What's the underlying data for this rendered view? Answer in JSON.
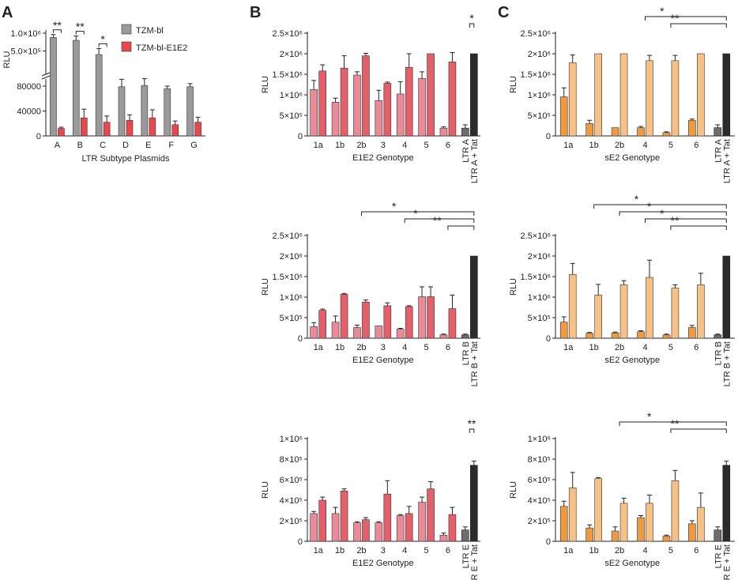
{
  "panel_labels": [
    "A",
    "B",
    "C"
  ],
  "chart_data": [
    {
      "id": "A",
      "type": "bar",
      "title": "",
      "xlabel": "LTR Subtype Plasmids",
      "ylabel": "RLU",
      "categories": [
        "A",
        "B",
        "C",
        "D",
        "E",
        "F",
        "G"
      ],
      "axis_break": true,
      "ylim_lower": [
        0,
        80000
      ],
      "yticks_lower": [
        0,
        40000,
        80000
      ],
      "ytick_labels_lower": [
        "0",
        "40000",
        "80000"
      ],
      "ylim_upper": [
        0,
        1000000
      ],
      "yticks_upper": [
        500000,
        1000000
      ],
      "ytick_labels_upper": [
        "5.0×10⁵",
        "1.0×10⁶"
      ],
      "legend": [
        "TZM-bl",
        "TZM-bl-E1E2"
      ],
      "series": [
        {
          "name": "TZM-bl",
          "color": "#9a9a9a",
          "seg": [
            "upper",
            "upper",
            "upper",
            "lower",
            "lower",
            "lower",
            "lower"
          ],
          "values": [
            880000,
            800000,
            400000,
            79000,
            81000,
            76000,
            79000
          ],
          "errors": [
            80000,
            120000,
            170000,
            12000,
            11000,
            4000,
            5000
          ]
        },
        {
          "name": "TZM-bl-E1E2",
          "color": "#e8474d",
          "seg": [
            "lower",
            "lower",
            "lower",
            "lower",
            "lower",
            "lower",
            "lower"
          ],
          "values": [
            12000,
            29000,
            22000,
            25000,
            29000,
            18000,
            22000
          ],
          "errors": [
            2000,
            14000,
            10000,
            9000,
            13000,
            6000,
            8000
          ]
        }
      ],
      "significance": [
        {
          "label": "**",
          "from": 0,
          "to": 0
        },
        {
          "label": "**",
          "from": 1,
          "to": 1
        },
        {
          "label": "*",
          "from": 2,
          "to": 2
        }
      ]
    },
    {
      "id": "B1",
      "type": "bar",
      "xlabel": "E1E2 Genotype",
      "ylabel": "RLU",
      "ylim": [
        0,
        2500000
      ],
      "yticks": [
        0,
        500000,
        1000000,
        1500000,
        2000000,
        2500000
      ],
      "ytick_labels": [
        "0",
        "5×10⁵",
        "1×10⁶",
        "1.5×10⁶",
        "2×10⁶",
        "2.5×10⁶"
      ],
      "categories": [
        "1a",
        "1b",
        "2b",
        "3",
        "4",
        "5",
        "6"
      ],
      "series": [
        {
          "name": "light",
          "color": "#ea8a96",
          "values": [
            1130000,
            820000,
            1480000,
            860000,
            1020000,
            1400000,
            190000
          ],
          "errors": [
            220000,
            100000,
            80000,
            250000,
            300000,
            160000,
            30000
          ]
        },
        {
          "name": "dark",
          "color": "#e3606a",
          "values": [
            1580000,
            1650000,
            1950000,
            1280000,
            1670000,
            2000000,
            1800000
          ],
          "errors": [
            150000,
            300000,
            60000,
            30000,
            330000,
            0,
            230000
          ]
        }
      ],
      "control": {
        "labels": [
          "LTR A",
          "LTR A + Tat"
        ],
        "values": [
          190000,
          2000000
        ],
        "errors": [
          80000,
          0
        ]
      },
      "significance": [
        {
          "label": "*",
          "from": 7,
          "to": 8
        }
      ]
    },
    {
      "id": "C1",
      "type": "bar",
      "xlabel": "sE2 Genotype",
      "ylabel": "RLU",
      "ylim": [
        0,
        2500000
      ],
      "yticks": [
        0,
        500000,
        1000000,
        1500000,
        2000000,
        2500000
      ],
      "ytick_labels": [
        "0",
        "5×10⁵",
        "1×10⁶",
        "1.5×10⁶",
        "2×10⁶",
        "2.5×10⁶"
      ],
      "categories": [
        "1a",
        "1b",
        "2b",
        "4",
        "5",
        "6"
      ],
      "series": [
        {
          "name": "light",
          "color": "#ee9a43",
          "values": [
            950000,
            300000,
            200000,
            200000,
            80000,
            380000
          ],
          "errors": [
            220000,
            80000,
            0,
            30000,
            20000,
            30000
          ]
        },
        {
          "name": "dark",
          "color": "#f7c186",
          "values": [
            1780000,
            2000000,
            2000000,
            1830000,
            1830000,
            2000000
          ],
          "errors": [
            190000,
            0,
            0,
            130000,
            130000,
            0
          ]
        }
      ],
      "control": {
        "labels": [
          "LTR A",
          "LTR A + Tat"
        ],
        "values": [
          200000,
          2000000
        ],
        "errors": [
          70000,
          0
        ]
      },
      "significance": [
        {
          "label": "*",
          "from": 3,
          "to": 6.5
        },
        {
          "label": "**",
          "from": 4,
          "to": 6.5
        }
      ]
    },
    {
      "id": "B2",
      "type": "bar",
      "xlabel": "E1E2 Genotype",
      "ylabel": "RLU",
      "ylim": [
        0,
        2500000
      ],
      "yticks": [
        0,
        500000,
        1000000,
        1500000,
        2000000,
        2500000
      ],
      "ytick_labels": [
        "0",
        "5×10⁵",
        "1×10⁶",
        "1.5×10⁶",
        "2×10⁶",
        "2.5×10⁶"
      ],
      "categories": [
        "1a",
        "1b",
        "2b",
        "3",
        "4",
        "5",
        "6"
      ],
      "series": [
        {
          "name": "light",
          "color": "#ea8a96",
          "values": [
            280000,
            390000,
            260000,
            300000,
            220000,
            1010000,
            80000
          ],
          "errors": [
            100000,
            150000,
            60000,
            0,
            20000,
            240000,
            20000
          ]
        },
        {
          "name": "dark",
          "color": "#e3606a",
          "values": [
            680000,
            1070000,
            880000,
            790000,
            770000,
            1010000,
            720000
          ],
          "errors": [
            30000,
            20000,
            50000,
            70000,
            20000,
            240000,
            330000
          ]
        }
      ],
      "control": {
        "labels": [
          "LTR B",
          "LTR B + Tat"
        ],
        "values": [
          80000,
          2000000
        ],
        "errors": [
          20000,
          0
        ]
      },
      "significance": [
        {
          "label": "*",
          "from": 2,
          "to": 7.5
        },
        {
          "label": "*",
          "from": 4,
          "to": 7.5
        },
        {
          "label": "**",
          "from": 6,
          "to": 7.5
        }
      ]
    },
    {
      "id": "C2",
      "type": "bar",
      "xlabel": "sE2 Genotype",
      "ylabel": "RLU",
      "ylim": [
        0,
        2500000
      ],
      "yticks": [
        0,
        500000,
        1000000,
        1500000,
        2000000,
        2500000
      ],
      "ytick_labels": [
        "0",
        "5×10⁵",
        "1×10⁶",
        "1.5×10⁶",
        "2×10⁶",
        "2.5×10⁶"
      ],
      "categories": [
        "1a",
        "1b",
        "2b",
        "4",
        "5",
        "6"
      ],
      "series": [
        {
          "name": "light",
          "color": "#ee9a43",
          "values": [
            390000,
            120000,
            130000,
            160000,
            80000,
            260000
          ],
          "errors": [
            130000,
            20000,
            20000,
            20000,
            20000,
            50000
          ]
        },
        {
          "name": "dark",
          "color": "#f7c186",
          "values": [
            1550000,
            1050000,
            1300000,
            1480000,
            1220000,
            1300000
          ],
          "errors": [
            270000,
            260000,
            100000,
            420000,
            80000,
            280000
          ]
        }
      ],
      "control": {
        "labels": [
          "LTR B",
          "LTR B + Tat"
        ],
        "values": [
          80000,
          2000000
        ],
        "errors": [
          20000,
          0
        ]
      },
      "significance": [
        {
          "label": "*",
          "from": 1,
          "to": 6.5
        },
        {
          "label": "*",
          "from": 2,
          "to": 6.5
        },
        {
          "label": "*",
          "from": 3,
          "to": 6.5
        },
        {
          "label": "**",
          "from": 4,
          "to": 6.5
        }
      ]
    },
    {
      "id": "B3",
      "type": "bar",
      "xlabel": "E1E2 Genotype",
      "ylabel": "RLU",
      "ylim": [
        0,
        1000000
      ],
      "yticks": [
        0,
        200000,
        400000,
        600000,
        800000,
        1000000
      ],
      "ytick_labels": [
        "0",
        "2×10⁵",
        "4×10⁵",
        "6×10⁵",
        "8×10⁵",
        "1×10⁶"
      ],
      "categories": [
        "1a",
        "1b",
        "2b",
        "3",
        "4",
        "5",
        "6"
      ],
      "series": [
        {
          "name": "light",
          "color": "#ea8a96",
          "values": [
            270000,
            270000,
            180000,
            180000,
            250000,
            380000,
            60000
          ],
          "errors": [
            20000,
            60000,
            10000,
            10000,
            10000,
            50000,
            20000
          ]
        },
        {
          "name": "dark",
          "color": "#e3606a",
          "values": [
            400000,
            490000,
            210000,
            460000,
            270000,
            510000,
            260000
          ],
          "errors": [
            30000,
            20000,
            20000,
            130000,
            70000,
            70000,
            70000
          ]
        }
      ],
      "control": {
        "labels": [
          "LTR E",
          "LTR E + Tat"
        ],
        "values": [
          110000,
          740000
        ],
        "errors": [
          30000,
          40000
        ]
      },
      "significance": [
        {
          "label": "**",
          "from": 7,
          "to": 8
        }
      ]
    },
    {
      "id": "C3",
      "type": "bar",
      "xlabel": "sE2 Genotype",
      "ylabel": "RLU",
      "ylim": [
        0,
        1000000
      ],
      "yticks": [
        0,
        200000,
        400000,
        600000,
        800000,
        1000000
      ],
      "ytick_labels": [
        "0",
        "2×10⁵",
        "4×10⁵",
        "6×10⁵",
        "8×10⁵",
        "1×10⁶"
      ],
      "categories": [
        "1a",
        "1b",
        "2b",
        "4",
        "5",
        "6"
      ],
      "series": [
        {
          "name": "light",
          "color": "#ee9a43",
          "values": [
            340000,
            130000,
            100000,
            230000,
            50000,
            170000
          ],
          "errors": [
            50000,
            30000,
            40000,
            20000,
            10000,
            30000
          ]
        },
        {
          "name": "dark",
          "color": "#f7c186",
          "values": [
            520000,
            610000,
            370000,
            370000,
            590000,
            330000
          ],
          "errors": [
            150000,
            10000,
            50000,
            80000,
            100000,
            140000
          ]
        }
      ],
      "control": {
        "labels": [
          "LTR E",
          "LTR E + Tat"
        ],
        "values": [
          110000,
          740000
        ],
        "errors": [
          30000,
          40000
        ]
      },
      "significance": [
        {
          "label": "*",
          "from": 2,
          "to": 6.5
        },
        {
          "label": "**",
          "from": 4,
          "to": 6.5
        }
      ]
    }
  ]
}
